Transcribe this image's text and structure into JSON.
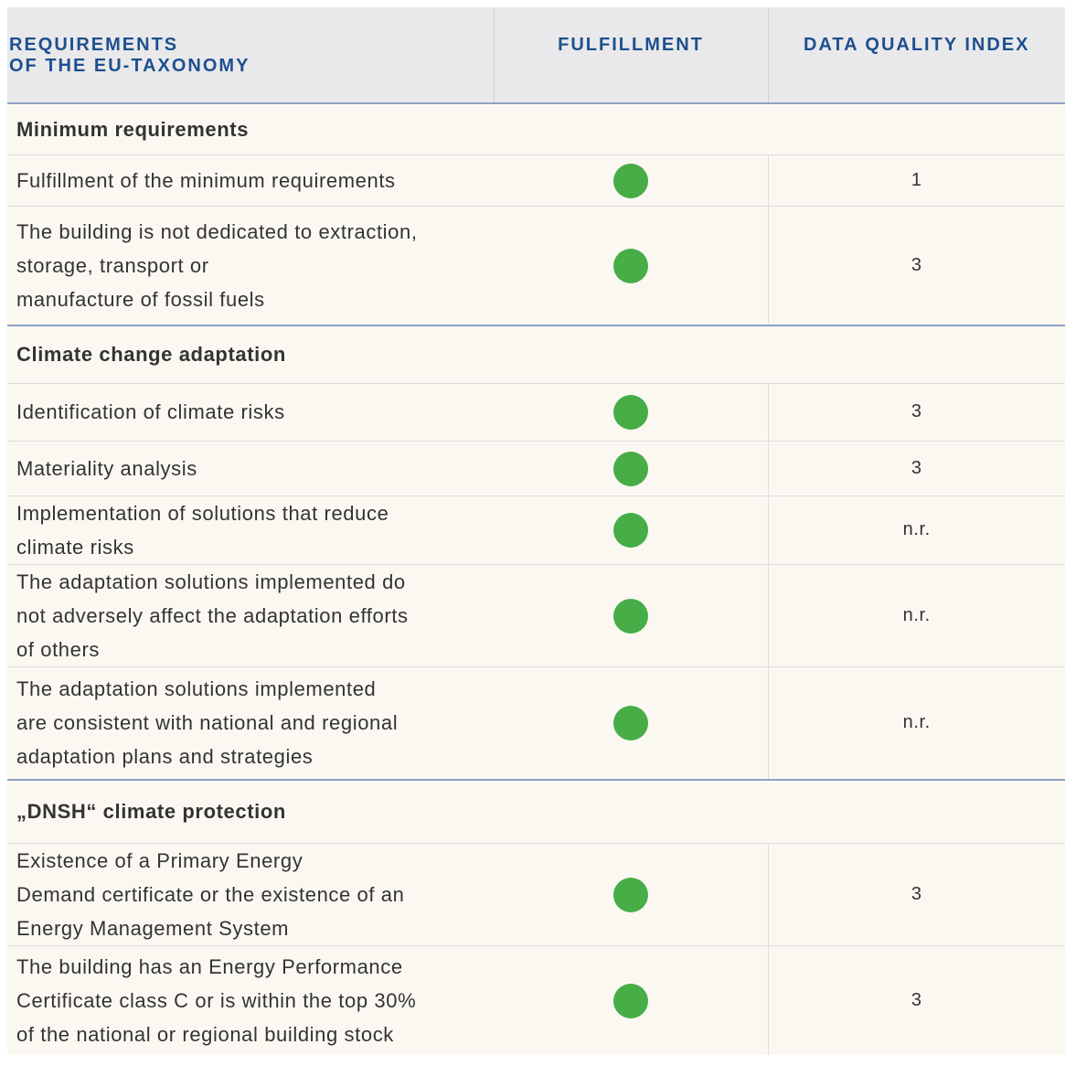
{
  "table": {
    "columns": [
      "REQUIREMENTS\nOF THE EU-TAXONOMY",
      "FULFILLMENT",
      "DATA QUALITY INDEX"
    ],
    "sections": [
      {
        "title": "Minimum requirements",
        "rows": [
          {
            "requirement": "Fulfillment of the minimum requirements",
            "data_quality_index": "1"
          },
          {
            "requirement": "The building is not dedicated to extraction,\nstorage, transport or\nmanufacture of fossil fuels",
            "data_quality_index": "3"
          }
        ]
      },
      {
        "title": "Climate change adaptation",
        "rows": [
          {
            "requirement": "Identification of climate risks",
            "data_quality_index": "3"
          },
          {
            "requirement": "Materiality analysis",
            "data_quality_index": "3"
          },
          {
            "requirement": "Implementation of solutions that reduce\nclimate risks",
            "data_quality_index": "n.r."
          },
          {
            "requirement": "The adaptation solutions implemented do\nnot adversely affect the adaptation efforts\nof others",
            "data_quality_index": "n.r."
          },
          {
            "requirement": "The adaptation solutions implemented\nare consistent with national and regional\nadaptation plans and strategies",
            "data_quality_index": "n.r."
          }
        ]
      },
      {
        "title": "„DNSH“ climate protection",
        "rows": [
          {
            "requirement": "Existence of a Primary Energy\nDemand certificate or the existence of an\nEnergy Management System",
            "data_quality_index": "3"
          },
          {
            "requirement": "The building has an Energy Performance\nCertificate class C or is within the top 30%\nof the national or regional building stock",
            "data_quality_index": "3"
          }
        ]
      }
    ]
  }
}
